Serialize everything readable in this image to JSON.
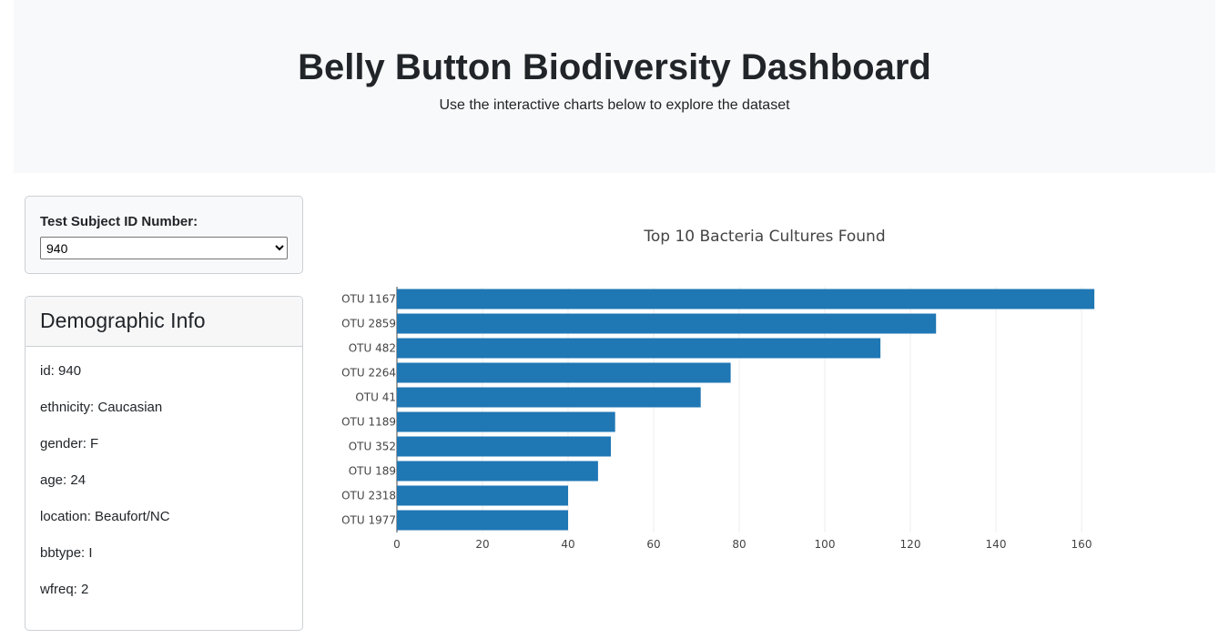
{
  "header": {
    "title": "Belly Button Biodiversity Dashboard",
    "subtitle": "Use the interactive charts below to explore the dataset"
  },
  "selector": {
    "label": "Test Subject ID Number:",
    "selected": "940"
  },
  "demographics": {
    "title": "Demographic Info",
    "rows": [
      "id: 940",
      "ethnicity: Caucasian",
      "gender: F",
      "age: 24",
      "location: Beaufort/NC",
      "bbtype: I",
      "wfreq: 2"
    ]
  },
  "chart_data": {
    "type": "bar",
    "orientation": "horizontal",
    "title": "Top 10 Bacteria Cultures Found",
    "xlabel": "",
    "ylabel": "",
    "categories": [
      "OTU 1167",
      "OTU 2859",
      "OTU 482",
      "OTU 2264",
      "OTU 41",
      "OTU 1189",
      "OTU 352",
      "OTU 189",
      "OTU 2318",
      "OTU 1977"
    ],
    "values": [
      163,
      126,
      113,
      78,
      71,
      51,
      50,
      47,
      40,
      40
    ],
    "xlim": [
      0,
      173
    ],
    "xticks": [
      0,
      20,
      40,
      60,
      80,
      100,
      120,
      140,
      160
    ],
    "grid": true,
    "color": "#1f77b4"
  }
}
